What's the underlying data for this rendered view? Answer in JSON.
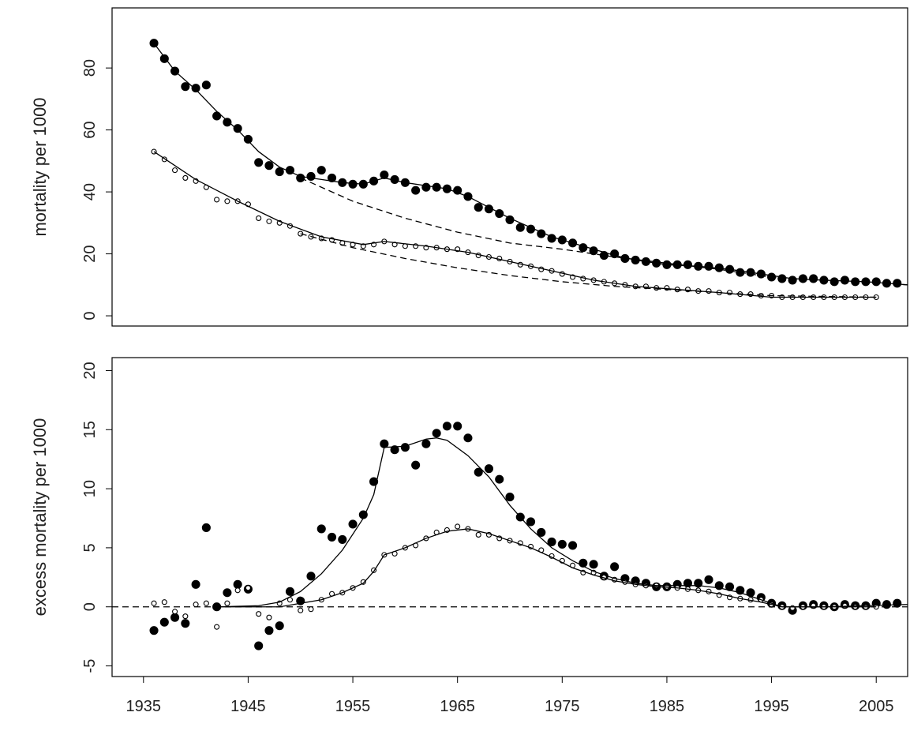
{
  "chart_data": [
    {
      "type": "scatter",
      "ylabel": "mortality per 1000",
      "xlim": [
        1932,
        2008
      ],
      "ylim": [
        -3.3,
        99.4
      ],
      "yticks": [
        0,
        20,
        40,
        60,
        80
      ],
      "series": [
        {
          "style": "points",
          "marker": "filled",
          "color": "#000000",
          "x": [
            1936,
            1937,
            1938,
            1939,
            1940,
            1941,
            1942,
            1943,
            1944,
            1945,
            1946,
            1947,
            1948,
            1949,
            1950,
            1951,
            1952,
            1953,
            1954,
            1955,
            1956,
            1957,
            1958,
            1959,
            1960,
            1961,
            1962,
            1963,
            1964,
            1965,
            1966,
            1967,
            1968,
            1969,
            1970,
            1971,
            1972,
            1973,
            1974,
            1975,
            1976,
            1977,
            1978,
            1979,
            1980,
            1981,
            1982,
            1983,
            1984,
            1985,
            1986,
            1987,
            1988,
            1989,
            1990,
            1991,
            1992,
            1993,
            1994,
            1995,
            1996,
            1997,
            1998,
            1999,
            2000,
            2001,
            2002,
            2003,
            2004,
            2005,
            2006,
            2007
          ],
          "values": [
            88,
            83,
            79,
            74,
            73.5,
            74.5,
            64.5,
            62.5,
            60.5,
            57,
            49.5,
            48.5,
            46.5,
            47,
            44.5,
            45,
            47,
            44.5,
            43,
            42.5,
            42.5,
            43.5,
            45.5,
            44,
            43,
            40.5,
            41.5,
            41.5,
            41,
            40.5,
            38.5,
            35,
            34.5,
            33,
            31,
            28.5,
            28,
            26.5,
            25,
            24.5,
            23.5,
            22,
            21,
            19.5,
            20,
            18.5,
            18,
            17.5,
            17,
            16.5,
            16.5,
            16.5,
            16,
            16,
            15.5,
            15,
            14,
            14,
            13.5,
            12.5,
            12,
            11.5,
            12,
            12,
            11.5,
            11,
            11.5,
            11,
            11,
            11,
            10.5,
            10.5
          ]
        },
        {
          "style": "points",
          "marker": "open",
          "color": "#000000",
          "x": [
            1936,
            1937,
            1938,
            1939,
            1940,
            1941,
            1942,
            1943,
            1944,
            1945,
            1946,
            1947,
            1948,
            1949,
            1950,
            1951,
            1952,
            1953,
            1954,
            1955,
            1956,
            1957,
            1958,
            1959,
            1960,
            1961,
            1962,
            1963,
            1964,
            1965,
            1966,
            1967,
            1968,
            1969,
            1970,
            1971,
            1972,
            1973,
            1974,
            1975,
            1976,
            1977,
            1978,
            1979,
            1980,
            1981,
            1982,
            1983,
            1984,
            1985,
            1986,
            1987,
            1988,
            1989,
            1990,
            1991,
            1992,
            1993,
            1994,
            1995,
            1996,
            1997,
            1998,
            1999,
            2000,
            2001,
            2002,
            2003,
            2004,
            2005
          ],
          "values": [
            53,
            50.5,
            47,
            44.5,
            43.5,
            41.5,
            37.5,
            37,
            37,
            36,
            31.5,
            30.5,
            30,
            29,
            26.5,
            25.5,
            25,
            24.5,
            23.5,
            23,
            22.5,
            23,
            24,
            23,
            22.5,
            22.5,
            22,
            22,
            21.5,
            21.5,
            20.5,
            19.5,
            19,
            18.5,
            17.5,
            16.5,
            16,
            15,
            14.5,
            13.5,
            12.5,
            12,
            11.5,
            11,
            10.5,
            10,
            9.5,
            9.5,
            9,
            9,
            8.5,
            8.5,
            8,
            8,
            7.5,
            7.5,
            7,
            7,
            6.5,
            6.5,
            6,
            6,
            6,
            6,
            6,
            6,
            6,
            6,
            6,
            6
          ]
        },
        {
          "style": "line",
          "dash": false,
          "color": "#000000",
          "x": [
            1936,
            1938,
            1940,
            1942,
            1944,
            1946,
            1948,
            1950,
            1952,
            1954,
            1956,
            1958,
            1960,
            1962,
            1964,
            1966,
            1968,
            1970,
            1972,
            1974,
            1976,
            1978,
            1980,
            1982,
            1985,
            1988,
            1991,
            1994,
            1997,
            2000,
            2004,
            2008
          ],
          "values": [
            88,
            79,
            73,
            66,
            60,
            53,
            48,
            45,
            44,
            43,
            42.5,
            44.5,
            43,
            42,
            41,
            38.5,
            35,
            31.5,
            28.5,
            25.5,
            23.5,
            21.5,
            19.5,
            18,
            16.5,
            16,
            15,
            13.5,
            12,
            11.5,
            11,
            10
          ]
        },
        {
          "style": "line",
          "dash": true,
          "color": "#000000",
          "x": [
            1950,
            1955,
            1960,
            1965,
            1970,
            1975,
            1980,
            1985,
            1990,
            1995,
            2000,
            2008
          ],
          "values": [
            44.5,
            37,
            31.5,
            27,
            23.5,
            21.5,
            19,
            17,
            15,
            12.5,
            11.5,
            10
          ]
        },
        {
          "style": "line",
          "dash": false,
          "color": "#000000",
          "x": [
            1936,
            1940,
            1944,
            1948,
            1952,
            1956,
            1958,
            1962,
            1966,
            1970,
            1974,
            1978,
            1982,
            1986,
            1990,
            1995,
            2000,
            2005
          ],
          "values": [
            53,
            44,
            37,
            30.5,
            25.5,
            23,
            24,
            22.5,
            20.5,
            17.5,
            14.5,
            11.5,
            9.5,
            8.5,
            7.5,
            6,
            6,
            6
          ]
        },
        {
          "style": "line",
          "dash": true,
          "color": "#000000",
          "x": [
            1950,
            1955,
            1960,
            1965,
            1970,
            1975,
            1980,
            1985,
            1990,
            1995,
            2005
          ],
          "values": [
            26.5,
            22,
            18.5,
            15.5,
            13,
            11,
            9.5,
            8.5,
            7.5,
            6.5,
            6
          ]
        }
      ]
    },
    {
      "type": "scatter",
      "ylabel": "excess mortality per 1000",
      "xlim": [
        1932,
        2008
      ],
      "ylim": [
        -5.9,
        21.1
      ],
      "yticks": [
        -5,
        0,
        5,
        10,
        15,
        20
      ],
      "xticks": [
        1935,
        1945,
        1955,
        1965,
        1975,
        1985,
        1995,
        2005
      ],
      "hline": 0,
      "series": [
        {
          "style": "points",
          "marker": "filled",
          "color": "#000000",
          "x": [
            1936,
            1937,
            1938,
            1939,
            1940,
            1941,
            1942,
            1943,
            1944,
            1945,
            1946,
            1947,
            1948,
            1949,
            1950,
            1951,
            1952,
            1953,
            1954,
            1955,
            1956,
            1957,
            1958,
            1959,
            1960,
            1961,
            1962,
            1963,
            1964,
            1965,
            1966,
            1967,
            1968,
            1969,
            1970,
            1971,
            1972,
            1973,
            1974,
            1975,
            1976,
            1977,
            1978,
            1979,
            1980,
            1981,
            1982,
            1983,
            1984,
            1985,
            1986,
            1987,
            1988,
            1989,
            1990,
            1991,
            1992,
            1993,
            1994,
            1995,
            1996,
            1997,
            1998,
            1999,
            2000,
            2001,
            2002,
            2003,
            2004,
            2005,
            2006,
            2007
          ],
          "values": [
            -2,
            -1.3,
            -0.9,
            -1.4,
            1.9,
            6.7,
            0,
            1.2,
            1.9,
            1.5,
            -3.3,
            -2,
            -1.6,
            1.3,
            0.5,
            2.6,
            6.6,
            5.9,
            5.7,
            7,
            7.8,
            10.6,
            13.8,
            13.3,
            13.5,
            12,
            13.8,
            14.7,
            15.3,
            15.3,
            14.3,
            11.4,
            11.7,
            10.8,
            9.3,
            7.6,
            7.2,
            6.3,
            5.5,
            5.3,
            5.2,
            3.7,
            3.6,
            2.6,
            3.4,
            2.4,
            2.2,
            2,
            1.7,
            1.7,
            1.9,
            2,
            2,
            2.3,
            1.8,
            1.7,
            1.4,
            1.2,
            0.8,
            0.3,
            0.1,
            -0.3,
            0.1,
            0.2,
            0.1,
            0,
            0.2,
            0.1,
            0.1,
            0.3,
            0.2,
            0.3
          ]
        },
        {
          "style": "points",
          "marker": "open",
          "color": "#000000",
          "x": [
            1936,
            1937,
            1938,
            1939,
            1940,
            1941,
            1942,
            1943,
            1944,
            1945,
            1946,
            1947,
            1948,
            1949,
            1950,
            1951,
            1952,
            1953,
            1954,
            1955,
            1956,
            1957,
            1958,
            1959,
            1960,
            1961,
            1962,
            1963,
            1964,
            1965,
            1966,
            1967,
            1968,
            1969,
            1970,
            1971,
            1972,
            1973,
            1974,
            1975,
            1976,
            1977,
            1978,
            1979,
            1980,
            1981,
            1982,
            1983,
            1984,
            1985,
            1986,
            1987,
            1988,
            1989,
            1990,
            1991,
            1992,
            1993,
            1994,
            1995,
            1996,
            1997,
            1998,
            1999,
            2000,
            2001,
            2002,
            2003,
            2004,
            2005
          ],
          "values": [
            0.3,
            0.4,
            -0.4,
            -0.8,
            0.2,
            0.3,
            -1.7,
            0.3,
            1.4,
            1.6,
            -0.6,
            -0.9,
            0.3,
            0.6,
            -0.3,
            -0.2,
            0.6,
            1.1,
            1.2,
            1.6,
            2.1,
            3.1,
            4.4,
            4.5,
            5,
            5.2,
            5.8,
            6.3,
            6.5,
            6.8,
            6.6,
            6.1,
            6.1,
            5.8,
            5.6,
            5.4,
            5.1,
            4.8,
            4.3,
            3.9,
            3.5,
            2.9,
            2.9,
            2.5,
            2.3,
            2.1,
            1.9,
            1.8,
            1.8,
            1.7,
            1.6,
            1.5,
            1.4,
            1.3,
            1,
            0.8,
            0.7,
            0.6,
            0.6,
            0.2,
            0,
            -0.1,
            0,
            0.1,
            0,
            0,
            0.1,
            0,
            0,
            0
          ]
        },
        {
          "style": "line",
          "dash": false,
          "color": "#000000",
          "x": [
            1942,
            1946,
            1948,
            1950,
            1952,
            1954,
            1956,
            1957,
            1958,
            1960,
            1962,
            1963,
            1964,
            1966,
            1968,
            1970,
            1972,
            1974,
            1976,
            1978,
            1980,
            1982,
            1984,
            1986,
            1988,
            1990,
            1992,
            1994,
            1996,
            2000,
            2008
          ],
          "values": [
            0,
            0.1,
            0.4,
            1.3,
            2.8,
            4.8,
            7.5,
            9.5,
            13.5,
            13.6,
            14.2,
            14.3,
            14.1,
            12.8,
            11,
            8.6,
            6.6,
            5,
            3.9,
            3,
            2.4,
            2,
            1.8,
            1.8,
            1.8,
            1.6,
            1.2,
            0.6,
            0,
            0,
            0.2
          ]
        },
        {
          "style": "line",
          "dash": false,
          "color": "#000000",
          "x": [
            1942,
            1948,
            1950,
            1952,
            1954,
            1956,
            1957,
            1958,
            1960,
            1962,
            1964,
            1966,
            1968,
            1970,
            1972,
            1974,
            1976,
            1978,
            1980,
            1982,
            1984,
            1986,
            1988,
            1990,
            1992,
            1994,
            1996,
            2000,
            2005
          ],
          "values": [
            0,
            0,
            0.3,
            0.6,
            1.2,
            2,
            3,
            4.4,
            5,
            5.8,
            6.4,
            6.6,
            6.2,
            5.6,
            5,
            4.2,
            3.3,
            2.7,
            2.2,
            1.9,
            1.7,
            1.6,
            1.4,
            1.1,
            0.7,
            0.4,
            0,
            0,
            0
          ]
        }
      ]
    }
  ]
}
